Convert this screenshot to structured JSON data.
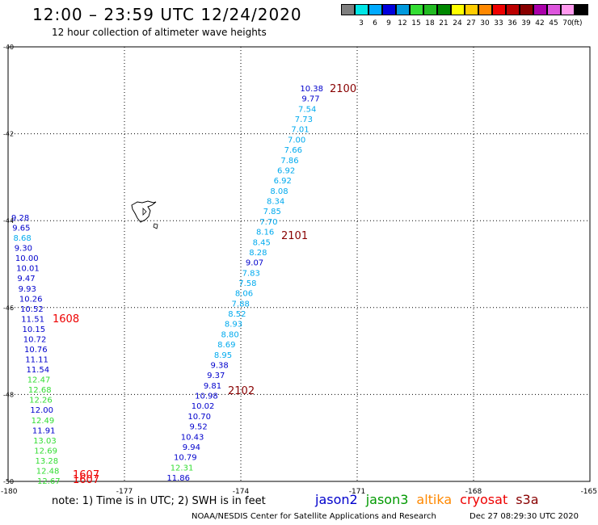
{
  "header": {
    "title": "12:00 – 23:59 UTC 12/24/2020",
    "subtitle": "12 hour collection of altimeter wave heights"
  },
  "scale": {
    "unit": "(ft)",
    "items": [
      {
        "color": "#7f7f7f",
        "label": ""
      },
      {
        "color": "#00e6e6",
        "label": "3"
      },
      {
        "color": "#00aaff",
        "label": "6"
      },
      {
        "color": "#0000dd",
        "label": "9"
      },
      {
        "color": "#0099dd",
        "label": "12"
      },
      {
        "color": "#33dd33",
        "label": "15"
      },
      {
        "color": "#22bb22",
        "label": "18"
      },
      {
        "color": "#008800",
        "label": "21"
      },
      {
        "color": "#ffff00",
        "label": "24"
      },
      {
        "color": "#ffcc00",
        "label": "27"
      },
      {
        "color": "#ff8800",
        "label": "30"
      },
      {
        "color": "#ee0000",
        "label": "33"
      },
      {
        "color": "#bb0000",
        "label": "36"
      },
      {
        "color": "#880000",
        "label": "39"
      },
      {
        "color": "#aa00aa",
        "label": "42"
      },
      {
        "color": "#dd55dd",
        "label": "45"
      },
      {
        "color": "#ff99ee",
        "label": "70"
      },
      {
        "color": "#000000",
        "label": ""
      }
    ]
  },
  "axes": {
    "lat_labels": [
      {
        "text": "-40",
        "lat": -40
      },
      {
        "text": "-42",
        "lat": -42
      },
      {
        "text": "-44",
        "lat": -44
      },
      {
        "text": "-46",
        "lat": -46
      },
      {
        "text": "-48",
        "lat": -48
      },
      {
        "text": "-50",
        "lat": -50
      }
    ],
    "lon_labels": [
      {
        "text": "-180",
        "lon": -180
      },
      {
        "text": "-177",
        "lon": -177
      },
      {
        "text": "-174",
        "lon": -174
      },
      {
        "text": "-171",
        "lon": -171
      },
      {
        "text": "-168",
        "lon": -168
      },
      {
        "text": "-165",
        "lon": -165
      }
    ]
  },
  "tracks": {
    "track_2100_2102": [
      {
        "v": "10.38",
        "c": "#0000cc"
      },
      {
        "v": "9.77",
        "c": "#0000cc"
      },
      {
        "v": "7.54",
        "c": "#00aaee"
      },
      {
        "v": "7.73",
        "c": "#00aaee"
      },
      {
        "v": "7.01",
        "c": "#00aaee"
      },
      {
        "v": "7.00",
        "c": "#00aaee"
      },
      {
        "v": "7.66",
        "c": "#00aaee"
      },
      {
        "v": "7.86",
        "c": "#00aaee"
      },
      {
        "v": "6.92",
        "c": "#00aaee"
      },
      {
        "v": "6.92",
        "c": "#00aaee"
      },
      {
        "v": "8.08",
        "c": "#00aaee"
      },
      {
        "v": "8.34",
        "c": "#00aaee"
      },
      {
        "v": "7.85",
        "c": "#00aaee"
      },
      {
        "v": "7.70",
        "c": "#00aaee"
      },
      {
        "v": "8.16",
        "c": "#00aaee"
      },
      {
        "v": "8.45",
        "c": "#00aaee"
      },
      {
        "v": "8.28",
        "c": "#00aaee"
      },
      {
        "v": "9.07",
        "c": "#0000cc"
      },
      {
        "v": "7.83",
        "c": "#00aaee"
      },
      {
        "v": "7.58",
        "c": "#00aaee"
      },
      {
        "v": "8.06",
        "c": "#00aaee"
      },
      {
        "v": "7.88",
        "c": "#00aaee"
      },
      {
        "v": "8.52",
        "c": "#00aaee"
      },
      {
        "v": "8.93",
        "c": "#00aaee"
      },
      {
        "v": "8.80",
        "c": "#00aaee"
      },
      {
        "v": "8.69",
        "c": "#00aaee"
      },
      {
        "v": "8.95",
        "c": "#00aaee"
      },
      {
        "v": "9.38",
        "c": "#0000cc"
      },
      {
        "v": "9.37",
        "c": "#0000cc"
      },
      {
        "v": "9.81",
        "c": "#0000cc"
      },
      {
        "v": "10.98",
        "c": "#0000cc"
      },
      {
        "v": "10.02",
        "c": "#0000cc"
      },
      {
        "v": "10.70",
        "c": "#0000cc"
      },
      {
        "v": "9.52",
        "c": "#0000cc"
      },
      {
        "v": "10.43",
        "c": "#0000cc"
      },
      {
        "v": "9.94",
        "c": "#0000cc"
      },
      {
        "v": "10.79",
        "c": "#0000cc"
      },
      {
        "v": "12.31",
        "c": "#33dd33"
      },
      {
        "v": "11.86",
        "c": "#0000cc"
      }
    ],
    "track_1608": [
      {
        "v": "9.28",
        "c": "#0000cc"
      },
      {
        "v": "9.65",
        "c": "#0000cc"
      },
      {
        "v": "8.68",
        "c": "#00aaee"
      },
      {
        "v": "9.30",
        "c": "#0000cc"
      },
      {
        "v": "10.00",
        "c": "#0000cc"
      },
      {
        "v": "10.01",
        "c": "#0000cc"
      },
      {
        "v": "9.47",
        "c": "#0000cc"
      },
      {
        "v": "9.93",
        "c": "#0000cc"
      },
      {
        "v": "10.26",
        "c": "#0000cc"
      },
      {
        "v": "10.52",
        "c": "#0000cc"
      },
      {
        "v": "11.51",
        "c": "#0000cc"
      },
      {
        "v": "10.15",
        "c": "#0000cc"
      },
      {
        "v": "10.72",
        "c": "#0000cc"
      },
      {
        "v": "10.76",
        "c": "#0000cc"
      },
      {
        "v": "11.11",
        "c": "#0000cc"
      },
      {
        "v": "11.54",
        "c": "#0000cc"
      },
      {
        "v": "12.47",
        "c": "#33dd33"
      },
      {
        "v": "12.68",
        "c": "#33dd33"
      },
      {
        "v": "12.26",
        "c": "#33dd33"
      },
      {
        "v": "12.00",
        "c": "#0000cc"
      },
      {
        "v": "12.49",
        "c": "#33dd33"
      },
      {
        "v": "11.91",
        "c": "#0000cc"
      },
      {
        "v": "13.03",
        "c": "#33dd33"
      },
      {
        "v": "12.69",
        "c": "#33dd33"
      },
      {
        "v": "13.28",
        "c": "#33dd33"
      },
      {
        "v": "12.48",
        "c": "#33dd33"
      },
      {
        "v": "12.67",
        "c": "#33dd33"
      }
    ],
    "time_labels": [
      {
        "text": "2100",
        "color": "#880000"
      },
      {
        "text": "2101",
        "color": "#880000"
      },
      {
        "text": "2102",
        "color": "#880000"
      },
      {
        "text": "1608",
        "color": "#ee0000"
      },
      {
        "text": "1607",
        "color": "#ee0000"
      },
      {
        "text": "1607",
        "color": "#ee0000"
      }
    ]
  },
  "footer": {
    "note": "note:  1) Time is in UTC;  2) SWH is in feet",
    "satellites": [
      {
        "name": "jason2",
        "color": "#0000cc"
      },
      {
        "name": "jason3",
        "color": "#009900"
      },
      {
        "name": "altika",
        "color": "#ff8800"
      },
      {
        "name": "cryosat",
        "color": "#ee0000"
      },
      {
        "name": "s3a",
        "color": "#880000"
      }
    ],
    "credit": "NOAA/NESDIS Center for Satellite Applications and Research",
    "timestamp": "Dec 27 08:29:30 UTC 2020"
  }
}
